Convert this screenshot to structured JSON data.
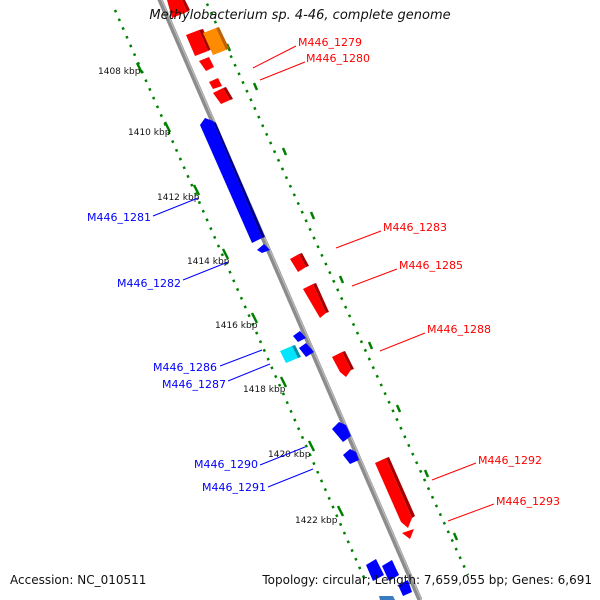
{
  "title": "Methylobacterium sp. 4-46, complete genome",
  "footer": {
    "accession": "Accession: NC_010511",
    "summary": "Topology: circular; Length: 7,659,055 bp; Genes: 6,691"
  },
  "ticks": [
    "1408 kbp",
    "1410 kbp",
    "1412 kbp",
    "1414 kbp",
    "1416 kbp",
    "1418 kbp",
    "1420 kbp",
    "1422 kbp"
  ],
  "gene_labels_forward": [
    "M446_1279",
    "M446_1280",
    "M446_1283",
    "M446_1285",
    "M446_1288",
    "M446_1292",
    "M446_1293"
  ],
  "gene_labels_reverse": [
    "M446_1281",
    "M446_1282",
    "M446_1286",
    "M446_1287",
    "M446_1290",
    "M446_1291"
  ],
  "colors": {
    "forward": "#ff0000",
    "reverse": "#0000ff",
    "highlight_cyan": "#00e5ff",
    "highlight_orange": "#ff8c00",
    "steel": "#3a7abf",
    "backbone": "#8a8a8a",
    "dotted_track": "#008000"
  }
}
